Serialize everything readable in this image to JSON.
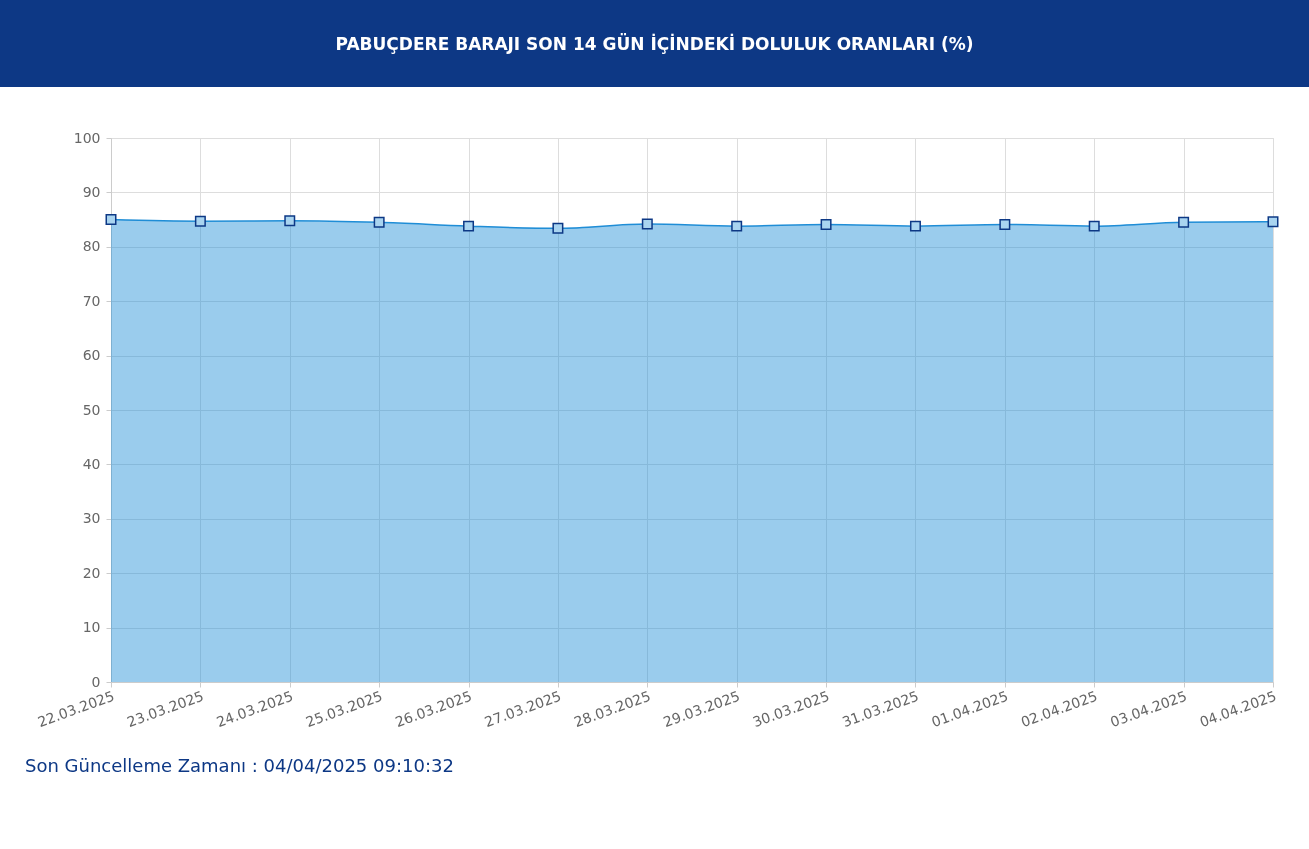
{
  "chart_data": {
    "type": "area",
    "title": "PABUÇDERE BARAJI SON 14 GÜN İÇİNDEKİ DOLULUK ORANLARI (%)",
    "categories": [
      "22.03.2025",
      "23.03.2025",
      "24.03.2025",
      "25.03.2025",
      "26.03.2025",
      "27.03.2025",
      "28.03.2025",
      "29.03.2025",
      "30.03.2025",
      "31.03.2025",
      "01.04.2025",
      "02.04.2025",
      "03.04.2025",
      "04.04.2025"
    ],
    "series": [
      {
        "color": "#1f8dd6",
        "values": [
          85.0,
          84.7,
          84.8,
          84.5,
          83.8,
          83.4,
          84.2,
          83.8,
          84.1,
          83.8,
          84.1,
          83.8,
          84.5,
          84.6
        ]
      }
    ],
    "ylim": [
      0,
      100
    ],
    "yticks": [
      0,
      10,
      20,
      30,
      40,
      50,
      60,
      70,
      80,
      90,
      100
    ],
    "grid": true,
    "marker": "square",
    "annotations": [
      "Son Güncelleme Zamanı : 04/04/2025 09:10:32"
    ]
  }
}
